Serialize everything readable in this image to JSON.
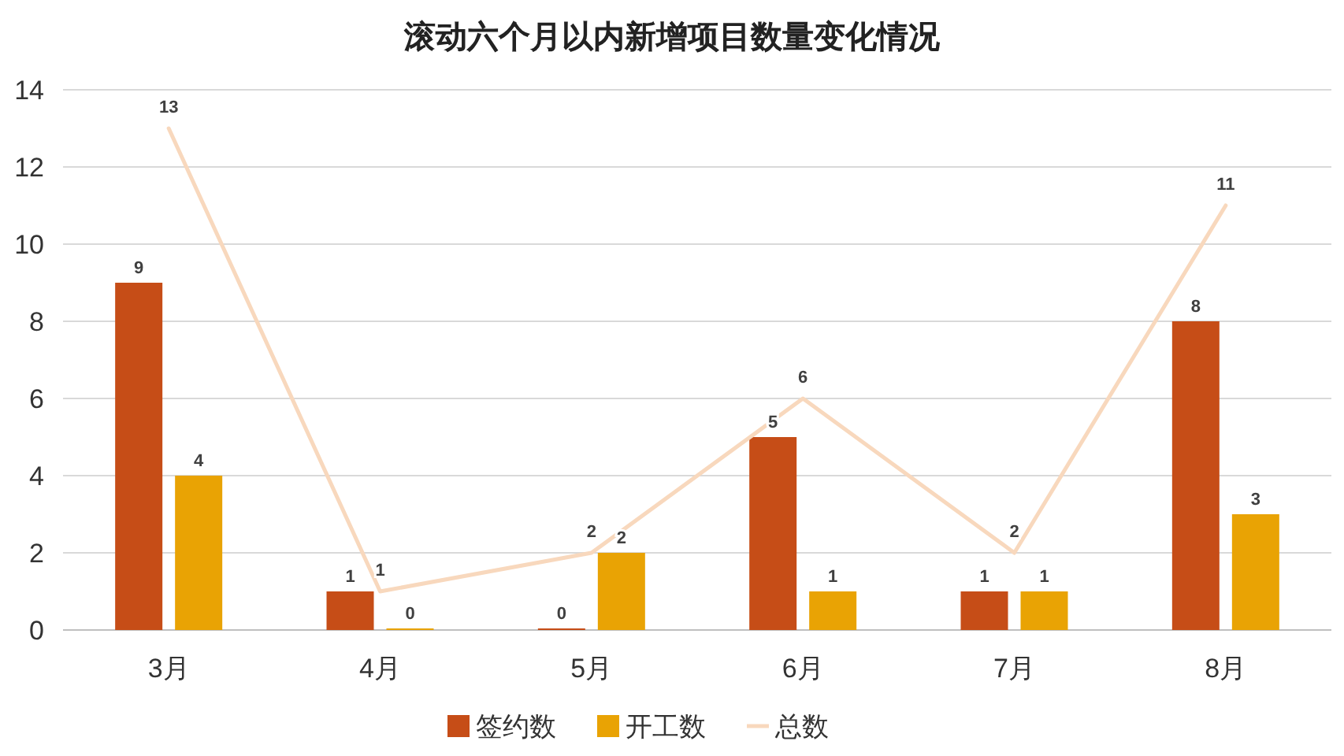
{
  "chart_data": {
    "type": "bar",
    "title": "滚动六个月以内新增项目数量变化情况",
    "categories": [
      "3月",
      "4月",
      "5月",
      "6月",
      "7月",
      "8月"
    ],
    "series": [
      {
        "name": "签约数",
        "type": "bar",
        "color": "#c64d17",
        "values": [
          9,
          1,
          0,
          5,
          1,
          8
        ]
      },
      {
        "name": "开工数",
        "type": "bar",
        "color": "#e9a304",
        "values": [
          4,
          0,
          2,
          1,
          1,
          3
        ]
      },
      {
        "name": "总数",
        "type": "line",
        "color": "#f8d8bd",
        "values": [
          13,
          1,
          2,
          6,
          2,
          11
        ]
      }
    ],
    "ylim": [
      0,
      14
    ],
    "yticks": [
      0,
      2,
      4,
      6,
      8,
      10,
      12,
      14
    ],
    "grid": "y",
    "legend": "bottom",
    "data_labels": true,
    "marker": "none"
  }
}
